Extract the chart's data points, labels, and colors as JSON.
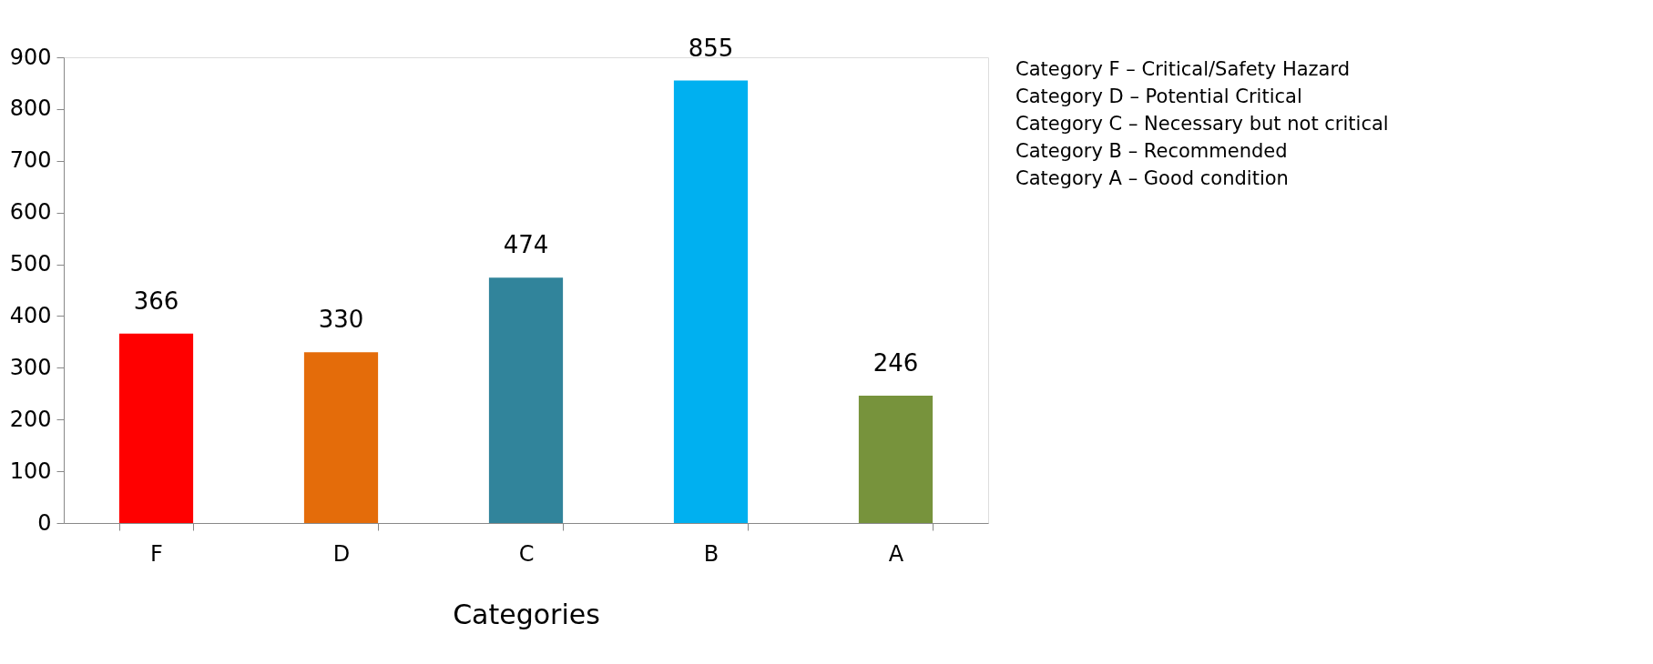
{
  "chart_data": {
    "type": "bar",
    "xlabel": "Categories",
    "categories": [
      "F",
      "D",
      "C",
      "B",
      "A"
    ],
    "values": [
      366,
      330,
      474,
      855,
      246
    ],
    "colors": [
      "#ff0000",
      "#e46c0a",
      "#31849b",
      "#00b0f0",
      "#77933c"
    ],
    "ylim": [
      0,
      900
    ],
    "yticks": [
      0,
      100,
      200,
      300,
      400,
      500,
      600,
      700,
      800,
      900
    ],
    "data_labels": true,
    "grid": false,
    "annotations": [
      "Category F – Critical/Safety Hazard",
      "Category D – Potential Critical",
      "Category C – Necessary but not critical",
      "Category B – Recommended",
      "Category A – Good condition"
    ]
  }
}
